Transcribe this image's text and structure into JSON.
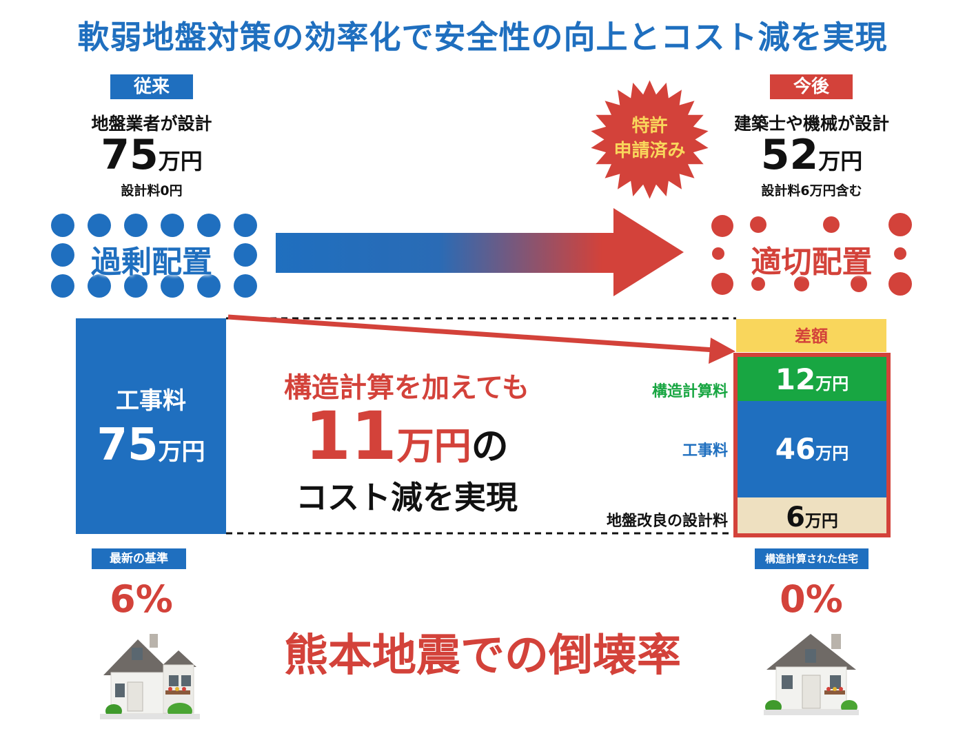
{
  "title": "軟弱地盤対策の効率化で安全性の向上とコスト減を実現",
  "colors": {
    "blue": "#1f6fbf",
    "red": "#d3423a",
    "green": "#18a642",
    "beige": "#eee0c0",
    "yellow": "#f9d65c"
  },
  "before": {
    "tag": "従来",
    "designer": "地盤業者が設計",
    "price_value": "75",
    "price_unit": "万円",
    "design_fee": "設計料0円",
    "placement": "過剰配置",
    "work_fee_label": "工事料",
    "work_fee_value": "75",
    "work_fee_unit": "万円",
    "standard_tag": "最新の基準",
    "collapse_rate": "6%"
  },
  "after": {
    "tag": "今後",
    "designer": "建築士や機械が設計",
    "price_value": "52",
    "price_unit": "万円",
    "design_fee": "設計料6万円含む",
    "placement": "適切配置",
    "patent_line1": "特許",
    "patent_line2": "申請済み",
    "standard_tag": "構造計算された住宅",
    "collapse_rate": "0%"
  },
  "difference": {
    "header": "差額",
    "segments": [
      {
        "label": "構造計算料",
        "value": "12",
        "unit": "万円",
        "color": "#18a642"
      },
      {
        "label": "工事料",
        "value": "46",
        "unit": "万円",
        "color": "#1f6fbf"
      },
      {
        "label": "地盤改良の設計料",
        "value": "6",
        "unit": "万円",
        "color": "#eee0c0"
      }
    ]
  },
  "message": {
    "line1": "構造計算を加えても",
    "amount_value": "11",
    "amount_unit": "万円",
    "amount_suffix": "の",
    "line3": "コスト減を実現"
  },
  "footer_caption": "熊本地震での倒壊率",
  "icons": [
    "starburst-badge-icon",
    "gradient-arrow-icon",
    "house-icon"
  ]
}
